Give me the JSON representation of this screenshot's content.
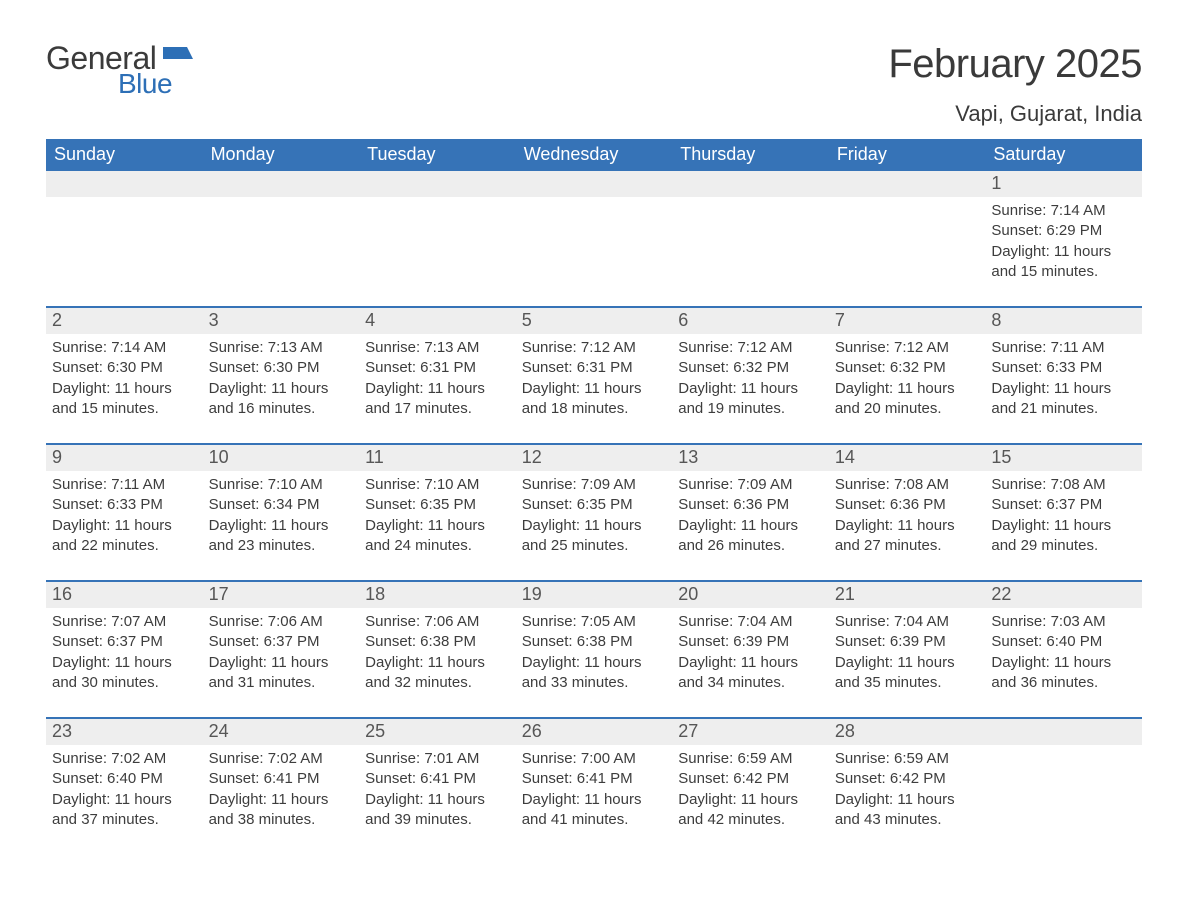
{
  "logo": {
    "word1": "General",
    "word2": "Blue"
  },
  "title": "February 2025",
  "location": "Vapi, Gujarat, India",
  "colors": {
    "header_bg": "#3673b7",
    "header_text": "#ffffff",
    "daynum_bg": "#eeeeee",
    "daynum_text": "#565656",
    "border": "#3673b7",
    "body_text": "#3d3d3d",
    "page_bg": "#ffffff",
    "logo_gray": "#3b3b3b",
    "logo_blue": "#2d6fb6"
  },
  "typography": {
    "title_fontsize": 40,
    "location_fontsize": 22,
    "header_fontsize": 18,
    "daynum_fontsize": 18,
    "body_fontsize": 15,
    "font_family": "Arial"
  },
  "labels": {
    "sunrise": "Sunrise:",
    "sunset": "Sunset:",
    "daylight_prefix": "Daylight:",
    "and": "and",
    "hours": "hours",
    "minutes": "minutes."
  },
  "structure": {
    "type": "calendar-table",
    "columns": 7,
    "rows": 5,
    "first_day_column_index": 6
  },
  "days_of_week": [
    "Sunday",
    "Monday",
    "Tuesday",
    "Wednesday",
    "Thursday",
    "Friday",
    "Saturday"
  ],
  "days": [
    {
      "n": 1,
      "sunrise": "7:14 AM",
      "sunset": "6:29 PM",
      "dl_h": 11,
      "dl_m": 15
    },
    {
      "n": 2,
      "sunrise": "7:14 AM",
      "sunset": "6:30 PM",
      "dl_h": 11,
      "dl_m": 15
    },
    {
      "n": 3,
      "sunrise": "7:13 AM",
      "sunset": "6:30 PM",
      "dl_h": 11,
      "dl_m": 16
    },
    {
      "n": 4,
      "sunrise": "7:13 AM",
      "sunset": "6:31 PM",
      "dl_h": 11,
      "dl_m": 17
    },
    {
      "n": 5,
      "sunrise": "7:12 AM",
      "sunset": "6:31 PM",
      "dl_h": 11,
      "dl_m": 18
    },
    {
      "n": 6,
      "sunrise": "7:12 AM",
      "sunset": "6:32 PM",
      "dl_h": 11,
      "dl_m": 19
    },
    {
      "n": 7,
      "sunrise": "7:12 AM",
      "sunset": "6:32 PM",
      "dl_h": 11,
      "dl_m": 20
    },
    {
      "n": 8,
      "sunrise": "7:11 AM",
      "sunset": "6:33 PM",
      "dl_h": 11,
      "dl_m": 21
    },
    {
      "n": 9,
      "sunrise": "7:11 AM",
      "sunset": "6:33 PM",
      "dl_h": 11,
      "dl_m": 22
    },
    {
      "n": 10,
      "sunrise": "7:10 AM",
      "sunset": "6:34 PM",
      "dl_h": 11,
      "dl_m": 23
    },
    {
      "n": 11,
      "sunrise": "7:10 AM",
      "sunset": "6:35 PM",
      "dl_h": 11,
      "dl_m": 24
    },
    {
      "n": 12,
      "sunrise": "7:09 AM",
      "sunset": "6:35 PM",
      "dl_h": 11,
      "dl_m": 25
    },
    {
      "n": 13,
      "sunrise": "7:09 AM",
      "sunset": "6:36 PM",
      "dl_h": 11,
      "dl_m": 26
    },
    {
      "n": 14,
      "sunrise": "7:08 AM",
      "sunset": "6:36 PM",
      "dl_h": 11,
      "dl_m": 27
    },
    {
      "n": 15,
      "sunrise": "7:08 AM",
      "sunset": "6:37 PM",
      "dl_h": 11,
      "dl_m": 29
    },
    {
      "n": 16,
      "sunrise": "7:07 AM",
      "sunset": "6:37 PM",
      "dl_h": 11,
      "dl_m": 30
    },
    {
      "n": 17,
      "sunrise": "7:06 AM",
      "sunset": "6:37 PM",
      "dl_h": 11,
      "dl_m": 31
    },
    {
      "n": 18,
      "sunrise": "7:06 AM",
      "sunset": "6:38 PM",
      "dl_h": 11,
      "dl_m": 32
    },
    {
      "n": 19,
      "sunrise": "7:05 AM",
      "sunset": "6:38 PM",
      "dl_h": 11,
      "dl_m": 33
    },
    {
      "n": 20,
      "sunrise": "7:04 AM",
      "sunset": "6:39 PM",
      "dl_h": 11,
      "dl_m": 34
    },
    {
      "n": 21,
      "sunrise": "7:04 AM",
      "sunset": "6:39 PM",
      "dl_h": 11,
      "dl_m": 35
    },
    {
      "n": 22,
      "sunrise": "7:03 AM",
      "sunset": "6:40 PM",
      "dl_h": 11,
      "dl_m": 36
    },
    {
      "n": 23,
      "sunrise": "7:02 AM",
      "sunset": "6:40 PM",
      "dl_h": 11,
      "dl_m": 37
    },
    {
      "n": 24,
      "sunrise": "7:02 AM",
      "sunset": "6:41 PM",
      "dl_h": 11,
      "dl_m": 38
    },
    {
      "n": 25,
      "sunrise": "7:01 AM",
      "sunset": "6:41 PM",
      "dl_h": 11,
      "dl_m": 39
    },
    {
      "n": 26,
      "sunrise": "7:00 AM",
      "sunset": "6:41 PM",
      "dl_h": 11,
      "dl_m": 41
    },
    {
      "n": 27,
      "sunrise": "6:59 AM",
      "sunset": "6:42 PM",
      "dl_h": 11,
      "dl_m": 42
    },
    {
      "n": 28,
      "sunrise": "6:59 AM",
      "sunset": "6:42 PM",
      "dl_h": 11,
      "dl_m": 43
    }
  ]
}
